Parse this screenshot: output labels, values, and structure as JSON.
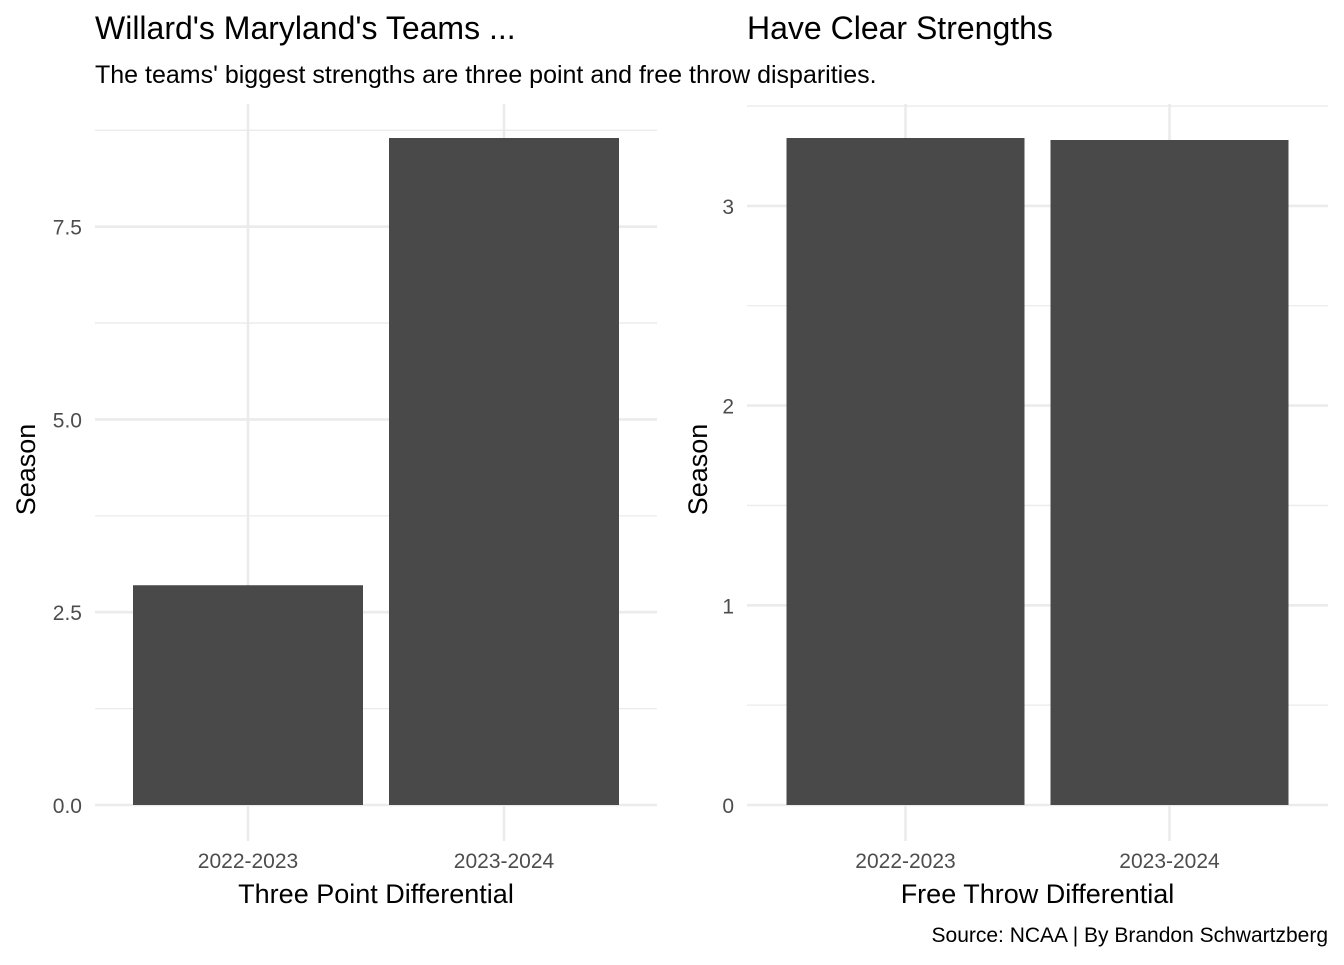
{
  "titles": {
    "left": "Willard's Maryland's Teams ...",
    "right": "Have Clear Strengths",
    "subtitle": "The teams' biggest strengths are three point and free throw disparities.",
    "caption": "Source: NCAA | By Brandon Schwartzberg"
  },
  "colors": {
    "bar": "#494949",
    "grid": "#ebebeb",
    "text": "#000000",
    "tick_text": "#4d4d4d"
  },
  "chart_data": [
    {
      "type": "bar",
      "title": "Willard's Maryland's Teams ...",
      "subtitle": "The teams' biggest strengths are three point and free throw disparities.",
      "categories": [
        "2022-2023",
        "2023-2024"
      ],
      "values": [
        2.85,
        8.65
      ],
      "xlabel": "Three Point Differential",
      "ylabel": "Season",
      "ylim": [
        0,
        8.65
      ],
      "yticks": [
        0,
        2.5,
        5,
        7.5
      ],
      "ytick_labels": [
        "0.0",
        "2.5",
        "5.0",
        "7.5"
      ],
      "grid": true
    },
    {
      "type": "bar",
      "title": "Have Clear Strengths",
      "categories": [
        "2022-2023",
        "2023-2024"
      ],
      "values": [
        3.34,
        3.33
      ],
      "xlabel": "Free Throw Differential",
      "ylabel": "Season",
      "ylim": [
        0,
        3.34
      ],
      "yticks": [
        0,
        1,
        2,
        3
      ],
      "ytick_labels": [
        "0",
        "1",
        "2",
        "3"
      ],
      "grid": true
    }
  ]
}
